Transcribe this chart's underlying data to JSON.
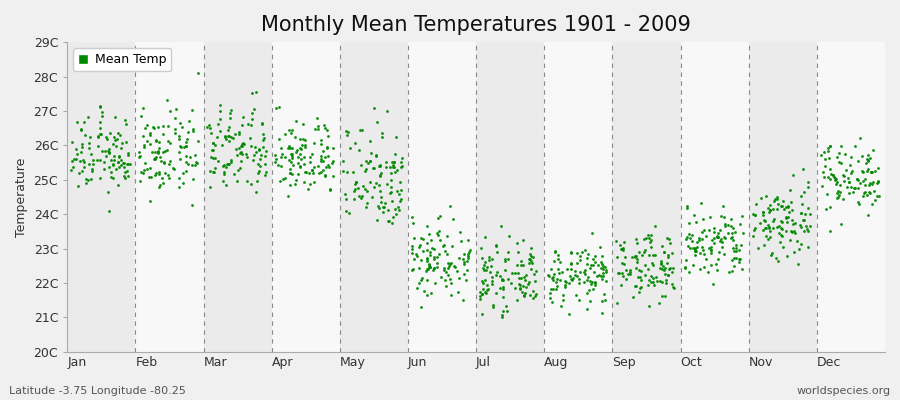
{
  "title": "Monthly Mean Temperatures 1901 - 2009",
  "ylabel": "Temperature",
  "ylim": [
    20,
    29
  ],
  "yticks": [
    20,
    21,
    22,
    23,
    24,
    25,
    26,
    27,
    28,
    29
  ],
  "ytick_labels": [
    "20C",
    "21C",
    "22C",
    "23C",
    "24C",
    "25C",
    "26C",
    "27C",
    "28C",
    "29C"
  ],
  "months": [
    "Jan",
    "Feb",
    "Mar",
    "Apr",
    "May",
    "Jun",
    "Jul",
    "Aug",
    "Sep",
    "Oct",
    "Nov",
    "Dec"
  ],
  "monthly_means": [
    25.72,
    25.75,
    25.85,
    25.65,
    25.15,
    22.75,
    22.15,
    22.2,
    22.5,
    23.1,
    23.8,
    25.1
  ],
  "monthly_stds": [
    0.55,
    0.6,
    0.65,
    0.55,
    0.8,
    0.6,
    0.45,
    0.42,
    0.48,
    0.55,
    0.6,
    0.5
  ],
  "n_years": 109,
  "marker_color": "#008800",
  "marker_size": 4,
  "bg_light": "#ebebeb",
  "bg_white": "#f8f8f8",
  "legend_label": "Mean Temp",
  "bottom_left_text": "Latitude -3.75 Longitude -80.25",
  "bottom_right_text": "worldspecies.org",
  "title_fontsize": 15,
  "axis_fontsize": 9,
  "tick_fontsize": 9,
  "random_seed": 12345
}
